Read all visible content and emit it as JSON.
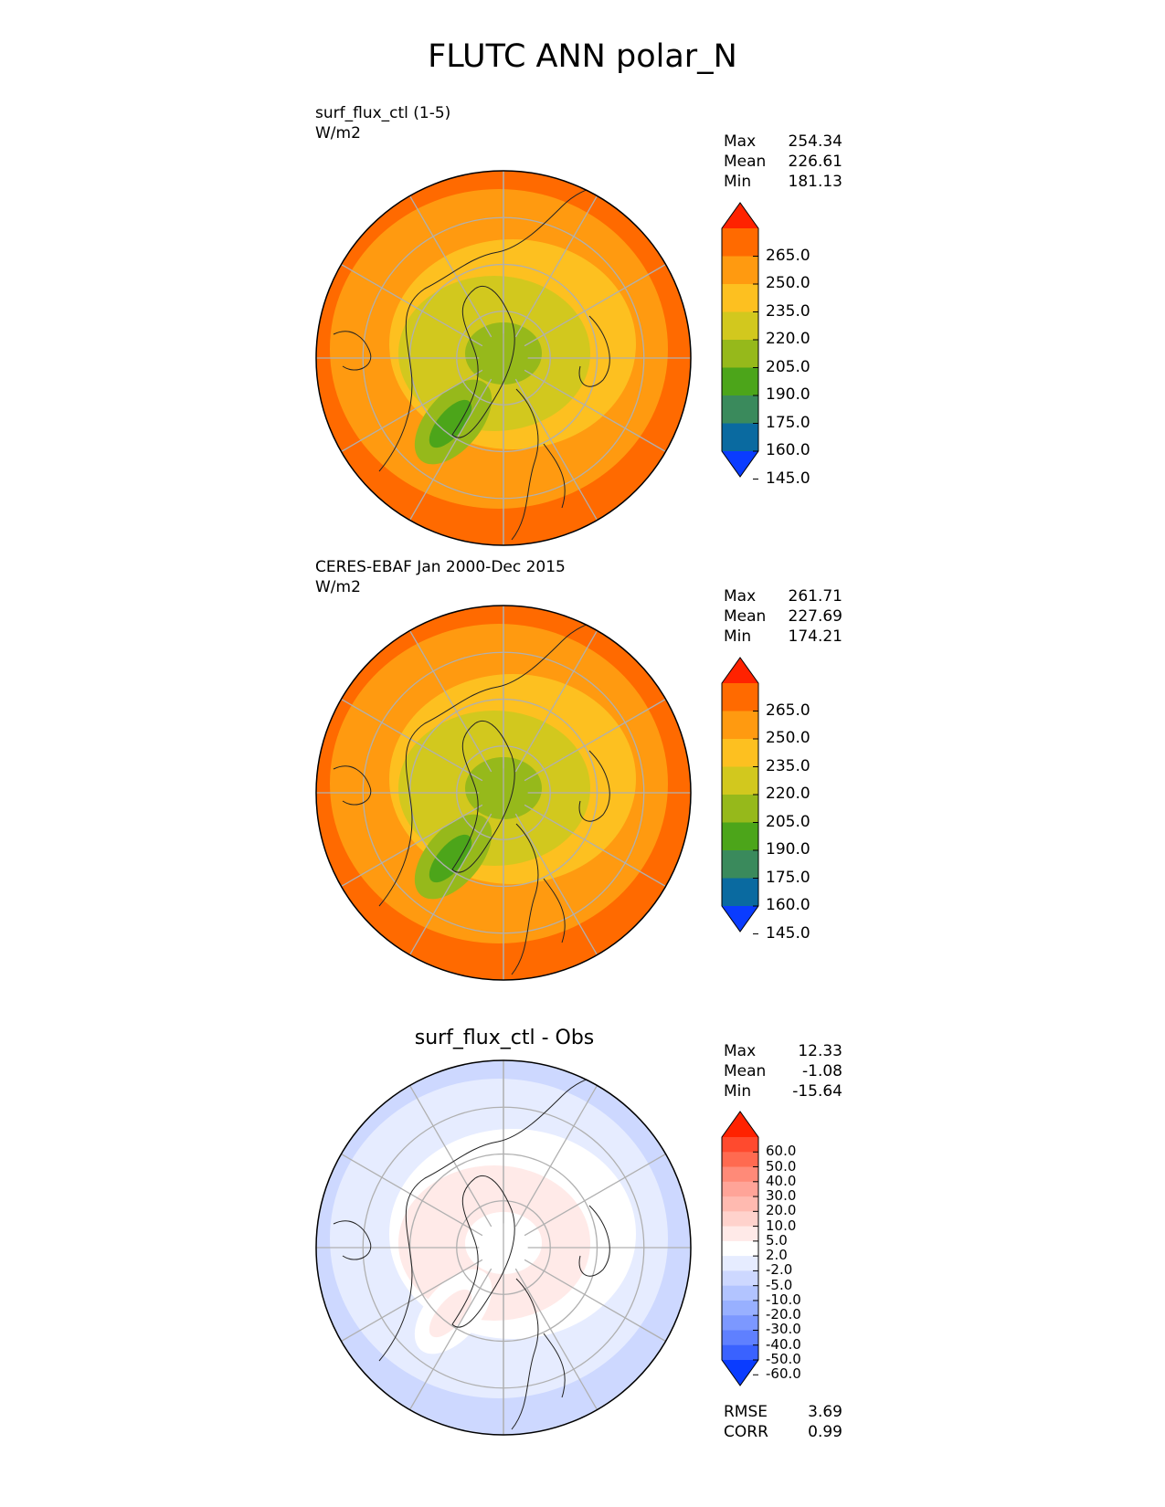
{
  "title": "FLUTC ANN polar_N",
  "chart_data": [
    {
      "type": "heatmap",
      "projection": "north-polar-stereographic",
      "label": "surf_flux_ctl (1-5)",
      "units": "W/m2",
      "stats": {
        "Max": "254.34",
        "Mean": "226.61",
        "Min": "181.13"
      },
      "colorbar": {
        "ticks": [
          "265.0",
          "250.0",
          "235.0",
          "220.0",
          "205.0",
          "190.0",
          "175.0",
          "160.0",
          "145.0"
        ],
        "colors": [
          "#ff2200",
          "#ff6a00",
          "#ff9a10",
          "#fdc020",
          "#d2c81e",
          "#96b91b",
          "#4ca51a",
          "#3a8a5c",
          "#0a6aa0",
          "#0a3cff"
        ],
        "extend": "both"
      },
      "regions": {
        "outer": 235,
        "middle": 220,
        "inner": 205,
        "core": 190,
        "high_lat_low": 175,
        "edge_high": 250
      }
    },
    {
      "type": "heatmap",
      "projection": "north-polar-stereographic",
      "label": "CERES-EBAF Jan 2000-Dec 2015",
      "units": "W/m2",
      "stats": {
        "Max": "261.71",
        "Mean": "227.69",
        "Min": "174.21"
      },
      "colorbar": {
        "ticks": [
          "265.0",
          "250.0",
          "235.0",
          "220.0",
          "205.0",
          "190.0",
          "175.0",
          "160.0",
          "145.0"
        ],
        "colors": [
          "#ff2200",
          "#ff6a00",
          "#ff9a10",
          "#fdc020",
          "#d2c81e",
          "#96b91b",
          "#4ca51a",
          "#3a8a5c",
          "#0a6aa0",
          "#0a3cff"
        ],
        "extend": "both"
      },
      "regions": {
        "outer": 235,
        "middle": 220,
        "inner": 205,
        "core": 190,
        "high_lat_low": 175,
        "edge_high": 250
      }
    },
    {
      "type": "heatmap",
      "projection": "north-polar-stereographic",
      "label": "surf_flux_ctl - Obs",
      "units": "",
      "stats": {
        "Max": "12.33",
        "Mean": "-1.08",
        "Min": "-15.64",
        "RMSE": "3.69",
        "CORR": "0.99"
      },
      "colorbar": {
        "ticks": [
          "60.0",
          "50.0",
          "40.0",
          "30.0",
          "20.0",
          "10.0",
          "5.0",
          "2.0",
          "-2.0",
          "-5.0",
          "-10.0",
          "-20.0",
          "-30.0",
          "-40.0",
          "-50.0",
          "-60.0"
        ],
        "colors": [
          "#ff2200",
          "#ff4a2e",
          "#ff6a50",
          "#ff8a78",
          "#ffa498",
          "#ffbab0",
          "#ffd2cc",
          "#ffeae8",
          "#ffffff",
          "#e6ecff",
          "#cdd8ff",
          "#b2c4ff",
          "#98b0ff",
          "#7c98ff",
          "#5f80ff",
          "#3a62ff",
          "#0a3cff"
        ],
        "extend": "both"
      },
      "regions": {
        "outer": -3,
        "middle": 0,
        "inner": 3,
        "core": 0,
        "high_lat_low": 4,
        "edge_high": -6
      }
    }
  ]
}
